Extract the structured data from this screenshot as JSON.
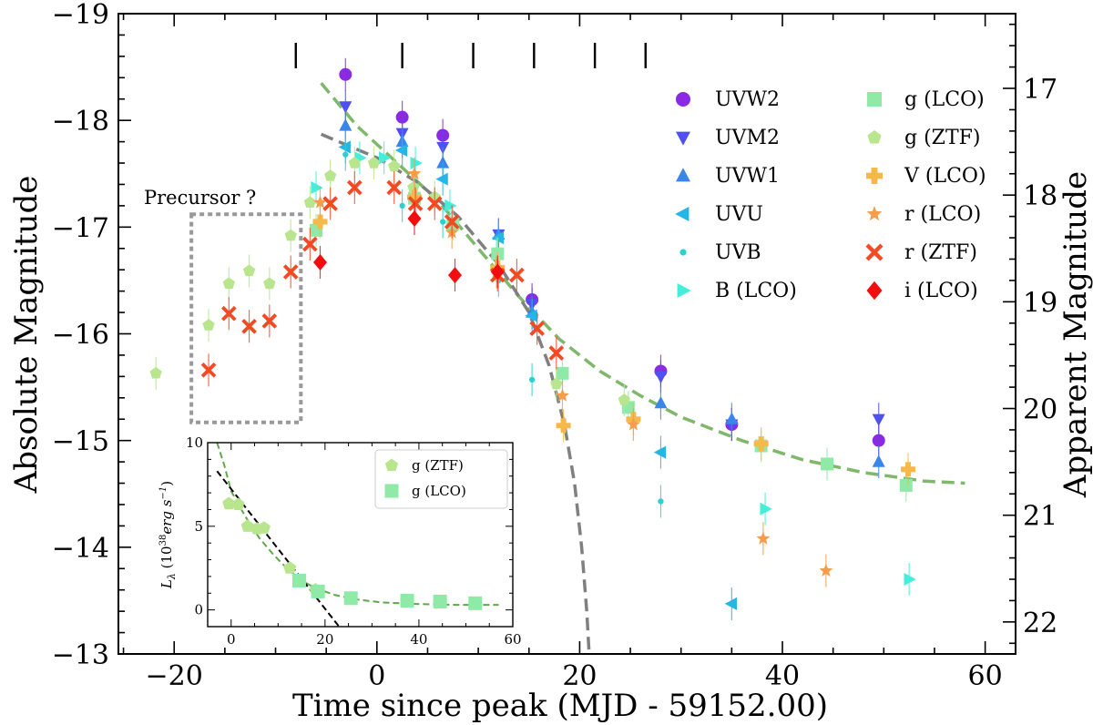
{
  "chart_data": {
    "type": "scatter",
    "xlabel": "Time since peak (MJD - 59152.00)",
    "ylabel": "Absolute Magnitude",
    "ylabel_right": "Apparent Magnitude",
    "xlim": [
      -25.5,
      63
    ],
    "ylim": [
      -13,
      -19
    ],
    "ylim_right": [
      22.3,
      16.3
    ],
    "x_ticks": [
      -20,
      0,
      20,
      40,
      60
    ],
    "x_tick_labels": [
      "−20",
      "0",
      "20",
      "40",
      "60"
    ],
    "y_ticks": [
      -13,
      -14,
      -15,
      -16,
      -17,
      -18,
      -19
    ],
    "y_tick_labels": [
      "−13",
      "−14",
      "−15",
      "−16",
      "−17",
      "−18",
      "−19"
    ],
    "y2_ticks": [
      17,
      18,
      19,
      20,
      21,
      22
    ],
    "y2_tick_labels": [
      "17",
      "18",
      "19",
      "20",
      "21",
      "22"
    ],
    "spectra_epochs": [
      -8,
      2.5,
      9.5,
      15.5,
      21.5,
      26.5
    ],
    "precursor_box": {
      "label": "Precursor ?",
      "x_range": [
        -18.3,
        -7.5
      ],
      "y_range": [
        -15.17,
        -17.12
      ]
    },
    "model_curves": [
      {
        "name": "power-law fit",
        "color": "#7fb86a",
        "points": [
          [
            -5.5,
            -18.35
          ],
          [
            -2,
            -17.95
          ],
          [
            2,
            -17.6
          ],
          [
            6,
            -17.25
          ],
          [
            10,
            -16.8
          ],
          [
            14,
            -16.35
          ],
          [
            18,
            -15.95
          ],
          [
            22,
            -15.65
          ],
          [
            26,
            -15.42
          ],
          [
            30,
            -15.22
          ],
          [
            36,
            -15.0
          ],
          [
            42,
            -14.82
          ],
          [
            48,
            -14.7
          ],
          [
            54,
            -14.62
          ],
          [
            58,
            -14.6
          ]
        ]
      },
      {
        "name": "linear decline",
        "color": "#808080",
        "points": [
          [
            -5.5,
            -17.87
          ],
          [
            0,
            -17.65
          ],
          [
            4,
            -17.42
          ],
          [
            8,
            -17.1
          ],
          [
            12,
            -16.65
          ],
          [
            15,
            -16.2
          ],
          [
            17,
            -15.7
          ],
          [
            18.5,
            -15.15
          ],
          [
            19.5,
            -14.6
          ],
          [
            20.2,
            -14.0
          ],
          [
            20.7,
            -13.4
          ],
          [
            21,
            -12.9
          ]
        ]
      }
    ],
    "series": [
      {
        "name": "UVW2",
        "marker": "circle",
        "color": "#8a2be2",
        "points": [
          [
            -3.1,
            -18.43
          ],
          [
            2.5,
            -18.03
          ],
          [
            6.5,
            -17.86
          ],
          [
            15.3,
            -16.32
          ],
          [
            28,
            -15.65
          ],
          [
            35,
            -15.15
          ],
          [
            49.5,
            -15.0
          ]
        ]
      },
      {
        "name": "UVM2",
        "marker": "triangle-down",
        "color": "#5050f0",
        "points": [
          [
            -3.1,
            -18.13
          ],
          [
            2.5,
            -17.88
          ],
          [
            6.5,
            -17.75
          ],
          [
            12,
            -16.93
          ],
          [
            15.3,
            -16.28
          ],
          [
            28,
            -15.6
          ],
          [
            35,
            -15.15
          ],
          [
            49.5,
            -15.2
          ]
        ]
      },
      {
        "name": "UVW1",
        "marker": "triangle-up",
        "color": "#3a86e8",
        "points": [
          [
            -3.1,
            -17.95
          ],
          [
            2.5,
            -17.8
          ],
          [
            6.5,
            -17.6
          ],
          [
            12,
            -16.93
          ],
          [
            15.3,
            -16.2
          ],
          [
            28,
            -15.35
          ],
          [
            35,
            -15.2
          ],
          [
            49.5,
            -14.8
          ]
        ]
      },
      {
        "name": "UVU",
        "marker": "triangle-left",
        "color": "#25b6e6",
        "points": [
          [
            -3.1,
            -17.75
          ],
          [
            2.5,
            -17.72
          ],
          [
            6.5,
            -17.45
          ],
          [
            12,
            -16.9
          ],
          [
            15.3,
            -16.17
          ],
          [
            28,
            -14.89
          ],
          [
            35,
            -13.47
          ]
        ]
      },
      {
        "name": "UVB",
        "marker": "dot",
        "color": "#2bd2cc",
        "points": [
          [
            -3.1,
            -17.68
          ],
          [
            2.5,
            -17.2
          ],
          [
            6.5,
            -17.05
          ],
          [
            12,
            -16.5
          ],
          [
            15.3,
            -15.57
          ],
          [
            28,
            -14.43
          ]
        ]
      },
      {
        "name": "B (LCO)",
        "marker": "triangle-right",
        "color": "#44eed8",
        "points": [
          [
            -6,
            -17.37
          ],
          [
            -1.7,
            -17.65
          ],
          [
            0.7,
            -17.65
          ],
          [
            3.8,
            -17.6
          ],
          [
            7.2,
            -17.2
          ],
          [
            11.8,
            -16.75
          ],
          [
            38.3,
            -14.36
          ],
          [
            52.5,
            -13.7
          ]
        ]
      },
      {
        "name": "g (LCO)",
        "marker": "square",
        "color": "#8eeaa6",
        "points": [
          [
            -6,
            -16.97
          ],
          [
            3.7,
            -17.27
          ],
          [
            7.5,
            -17.03
          ],
          [
            11.9,
            -16.75
          ],
          [
            18.3,
            -15.63
          ],
          [
            24.8,
            -15.31
          ],
          [
            37.9,
            -14.95
          ],
          [
            44.4,
            -14.78
          ],
          [
            52.2,
            -14.58
          ]
        ]
      },
      {
        "name": "g (ZTF)",
        "marker": "pentagon",
        "color": "#b8e58e",
        "points": [
          [
            -21.8,
            -15.63
          ],
          [
            -16.6,
            -16.08
          ],
          [
            -14.6,
            -16.47
          ],
          [
            -12.6,
            -16.59
          ],
          [
            -10.6,
            -16.47
          ],
          [
            -8.5,
            -16.92
          ],
          [
            -6.6,
            -17.23
          ],
          [
            -4.6,
            -17.48
          ],
          [
            -2.2,
            -17.6
          ],
          [
            -0.3,
            -17.6
          ],
          [
            1.7,
            -17.57
          ],
          [
            3.6,
            -17.37
          ],
          [
            5.7,
            -17.28
          ],
          [
            17.7,
            -15.53
          ],
          [
            24.4,
            -15.38
          ]
        ]
      },
      {
        "name": "V (LCO)",
        "marker": "plus",
        "color": "#f7b84a",
        "points": [
          [
            -5.6,
            -17.05
          ],
          [
            3.7,
            -17.28
          ],
          [
            11.9,
            -16.62
          ],
          [
            18.4,
            -15.14
          ],
          [
            25.3,
            -15.2
          ],
          [
            37.9,
            -14.97
          ],
          [
            52.4,
            -14.73
          ]
        ]
      },
      {
        "name": "r (LCO)",
        "marker": "star",
        "color": "#f59d4a",
        "points": [
          [
            -5.6,
            -17.23
          ],
          [
            3.7,
            -17.5
          ],
          [
            7.4,
            -16.95
          ],
          [
            11.8,
            -16.58
          ],
          [
            18.3,
            -15.42
          ],
          [
            25.3,
            -15.15
          ],
          [
            38.1,
            -14.08
          ],
          [
            44.3,
            -13.78
          ]
        ]
      },
      {
        "name": "r (ZTF)",
        "marker": "x",
        "color": "#f34a24",
        "points": [
          [
            -16.6,
            -15.66
          ],
          [
            -14.6,
            -16.19
          ],
          [
            -12.6,
            -16.07
          ],
          [
            -10.6,
            -16.12
          ],
          [
            -8.5,
            -16.58
          ],
          [
            -6.6,
            -16.84
          ],
          [
            -4.6,
            -17.22
          ],
          [
            -2.2,
            -17.37
          ],
          [
            1.7,
            -17.37
          ],
          [
            3.8,
            -17.22
          ],
          [
            5.7,
            -17.22
          ],
          [
            7.4,
            -17.05
          ],
          [
            11.9,
            -16.55
          ],
          [
            13.8,
            -16.55
          ],
          [
            15.8,
            -16.05
          ],
          [
            17.7,
            -15.82
          ]
        ]
      },
      {
        "name": "i (LCO)",
        "marker": "diamond",
        "color": "#f20e0e",
        "points": [
          [
            -5.6,
            -16.67
          ],
          [
            3.7,
            -17.08
          ],
          [
            7.7,
            -16.55
          ],
          [
            11.9,
            -16.58
          ]
        ]
      }
    ],
    "legend_col1": [
      "UVW2",
      "UVM2",
      "UVW1",
      "UVU",
      "UVB",
      "B (LCO)"
    ],
    "legend_col2": [
      "g (LCO)",
      "g (ZTF)",
      "V (LCO)",
      "r (LCO)",
      "r (ZTF)",
      "i (LCO)"
    ],
    "inset": {
      "ylabel_text": "L",
      "ylabel_sub": "λ",
      "ylabel_units": " (10",
      "ylabel_exp": "38",
      "ylabel_tail": "erg s",
      "ylabel_neg": "−1",
      "ylabel_close": ")",
      "xlim": [
        -5,
        60
      ],
      "ylim": [
        -1,
        10
      ],
      "x_ticks": [
        0,
        20,
        40,
        60
      ],
      "x_tick_labels": [
        "0",
        "20",
        "40",
        "60"
      ],
      "y_ticks": [
        0,
        5,
        10
      ],
      "y_tick_labels": [
        "0",
        "5",
        "10"
      ],
      "series": [
        {
          "name": "g (ZTF)",
          "marker": "pentagon",
          "color": "#b8e58e",
          "points": [
            [
              -0.5,
              6.35
            ],
            [
              1.5,
              6.3
            ],
            [
              3.5,
              5.0
            ],
            [
              5.5,
              4.85
            ],
            [
              7,
              4.9
            ],
            [
              12.5,
              2.5
            ],
            [
              18,
              1.2
            ]
          ]
        },
        {
          "name": "g (LCO)",
          "marker": "square",
          "color": "#8eeaa6",
          "points": [
            [
              14.5,
              1.75
            ],
            [
              18.5,
              1.1
            ],
            [
              25.5,
              0.7
            ],
            [
              37.5,
              0.55
            ],
            [
              44.5,
              0.5
            ],
            [
              52,
              0.4
            ]
          ]
        }
      ],
      "curves": [
        {
          "name": "exponential fit",
          "color": "#5fa84a",
          "points": [
            [
              -3,
              10
            ],
            [
              -1.5,
              8.7
            ],
            [
              0,
              7.1
            ],
            [
              3,
              5.6
            ],
            [
              6,
              4.3
            ],
            [
              9,
              3.3
            ],
            [
              12,
              2.45
            ],
            [
              15,
              1.75
            ],
            [
              18,
              1.3
            ],
            [
              22,
              0.9
            ],
            [
              26,
              0.65
            ],
            [
              32,
              0.45
            ],
            [
              40,
              0.35
            ],
            [
              48,
              0.3
            ],
            [
              57,
              0.3
            ]
          ]
        },
        {
          "name": "linear fit",
          "color": "#000000",
          "points": [
            [
              -3,
              8.3
            ],
            [
              23,
              -1
            ]
          ]
        }
      ]
    }
  }
}
